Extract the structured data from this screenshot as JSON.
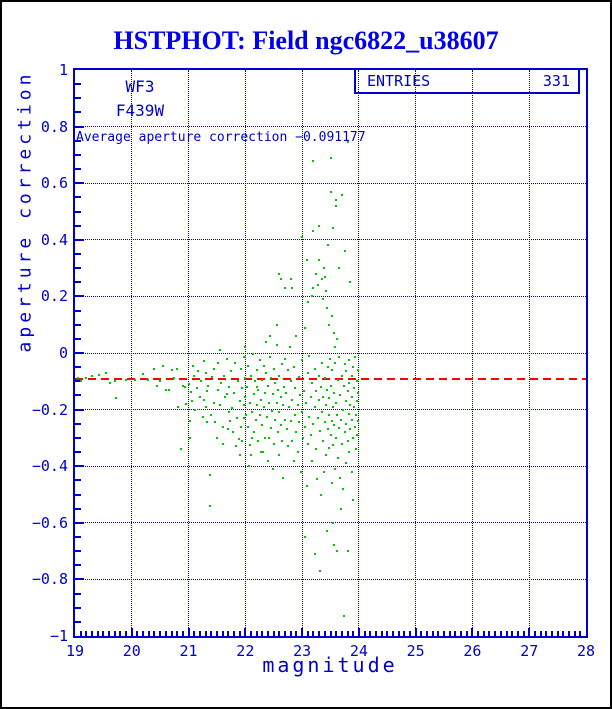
{
  "header": {
    "title": "HSTPHOT: Field ngc6822_u38607"
  },
  "annotations": {
    "detector": "WF3",
    "filter": "F439W",
    "average_line_label": "Average aperture correction −0.091177",
    "entries_label": "ENTRIES",
    "entries_value": "331"
  },
  "colors": {
    "plot_blue": "#0000cd",
    "title_blue": "#0000ee",
    "point_green": "#00c800",
    "mean_line_red": "#ff0000"
  },
  "chart_data": {
    "type": "scatter",
    "title": "HSTPHOT: Field ngc6822_u38607",
    "xlabel": "magnitude",
    "ylabel": "aperture correction",
    "xlim": [
      19,
      28
    ],
    "ylim": [
      -1,
      1
    ],
    "x_minor_step": 0.1,
    "y_minor_step": 0.05,
    "grid": "dotted at major ticks",
    "entries": 331,
    "mean_line": {
      "value": -0.091177,
      "style": "dashed",
      "color": "#ff0000"
    },
    "x_ticks": [
      [
        19,
        "19"
      ],
      [
        20,
        "20"
      ],
      [
        21,
        "21"
      ],
      [
        22,
        "22"
      ],
      [
        23,
        "23"
      ],
      [
        24,
        "24"
      ],
      [
        25,
        "25"
      ],
      [
        26,
        "26"
      ],
      [
        27,
        "27"
      ],
      [
        28,
        "28"
      ]
    ],
    "y_ticks": [
      [
        1,
        "1"
      ],
      [
        0.8,
        "0.8"
      ],
      [
        0.6,
        "0.6"
      ],
      [
        0.4,
        "0.4"
      ],
      [
        0.2,
        "0.2"
      ],
      [
        0,
        "0"
      ],
      [
        -0.2,
        "−0.2"
      ],
      [
        -0.4,
        "−0.4"
      ],
      [
        -0.6,
        "−0.6"
      ],
      [
        -0.8,
        "−0.8"
      ],
      [
        -1,
        "−1"
      ]
    ],
    "points": [
      [
        19.05,
        -0.09
      ],
      [
        19.1,
        -0.1
      ],
      [
        19.2,
        -0.088
      ],
      [
        19.3,
        -0.082
      ],
      [
        19.42,
        -0.078
      ],
      [
        19.55,
        -0.07
      ],
      [
        19.62,
        -0.105
      ],
      [
        19.7,
        -0.1
      ],
      [
        19.72,
        -0.16
      ],
      [
        19.9,
        -0.095
      ],
      [
        20.05,
        -0.094
      ],
      [
        20.2,
        -0.074
      ],
      [
        20.28,
        -0.096
      ],
      [
        20.4,
        -0.056
      ],
      [
        20.45,
        -0.118
      ],
      [
        20.5,
        -0.1
      ],
      [
        20.55,
        -0.046
      ],
      [
        20.6,
        -0.13
      ],
      [
        20.66,
        -0.132
      ],
      [
        20.7,
        -0.06
      ],
      [
        20.75,
        -0.09
      ],
      [
        20.8,
        -0.056
      ],
      [
        20.82,
        -0.19
      ],
      [
        20.87,
        -0.34
      ],
      [
        20.9,
        -0.115
      ],
      [
        20.94,
        -0.12
      ],
      [
        20.95,
        -0.18
      ],
      [
        21.0,
        -0.11
      ],
      [
        21.02,
        -0.3
      ],
      [
        21.03,
        -0.24
      ],
      [
        21.05,
        -0.137
      ],
      [
        21.06,
        -0.17
      ],
      [
        21.08,
        -0.046
      ],
      [
        21.1,
        -0.08
      ],
      [
        21.12,
        -0.2
      ],
      [
        21.15,
        -0.125
      ],
      [
        21.17,
        -0.065
      ],
      [
        21.2,
        -0.155
      ],
      [
        21.22,
        -0.1
      ],
      [
        21.25,
        -0.225
      ],
      [
        21.27,
        -0.03
      ],
      [
        21.28,
        -0.165
      ],
      [
        21.3,
        -0.19
      ],
      [
        21.31,
        -0.07
      ],
      [
        21.32,
        -0.135
      ],
      [
        21.33,
        -0.245
      ],
      [
        21.35,
        -0.115
      ],
      [
        21.37,
        -0.43
      ],
      [
        21.38,
        -0.54
      ],
      [
        21.4,
        -0.22
      ],
      [
        21.42,
        -0.085
      ],
      [
        21.44,
        -0.175
      ],
      [
        21.45,
        -0.055
      ],
      [
        21.47,
        -0.245
      ],
      [
        21.5,
        -0.3
      ],
      [
        21.51,
        -0.13
      ],
      [
        21.52,
        -0.035
      ],
      [
        21.55,
        0.01
      ],
      [
        21.55,
        -0.185
      ],
      [
        21.57,
        -0.105
      ],
      [
        21.6,
        -0.26
      ],
      [
        21.6,
        -0.32
      ],
      [
        21.62,
        -0.08
      ],
      [
        21.65,
        -0.155
      ],
      [
        21.67,
        -0.02
      ],
      [
        21.68,
        -0.145
      ],
      [
        21.7,
        -0.27
      ],
      [
        21.71,
        -0.21
      ],
      [
        21.72,
        -0.12
      ],
      [
        21.73,
        -0.24
      ],
      [
        21.75,
        -0.065
      ],
      [
        21.77,
        -0.195
      ],
      [
        21.78,
        -0.28
      ],
      [
        21.8,
        -0.14
      ],
      [
        21.82,
        -0.035
      ],
      [
        21.83,
        -0.33
      ],
      [
        21.85,
        -0.23
      ],
      [
        21.87,
        -0.1
      ],
      [
        21.88,
        -0.305
      ],
      [
        21.9,
        -0.17
      ],
      [
        21.9,
        -0.36
      ],
      [
        21.92,
        -0.055
      ],
      [
        21.93,
        -0.26
      ],
      [
        21.95,
        -0.125
      ],
      [
        21.95,
        -0.31
      ],
      [
        21.97,
        -0.23
      ],
      [
        21.97,
        -0.015
      ],
      [
        21.98,
        -0.185
      ],
      [
        22.0,
        -0.09
      ],
      [
        22.0,
        -0.155
      ],
      [
        22.0,
        0.02
      ],
      [
        22.02,
        -0.22
      ],
      [
        22.03,
        -0.12
      ],
      [
        22.05,
        -0.26
      ],
      [
        22.05,
        -0.045
      ],
      [
        22.07,
        -0.4
      ],
      [
        22.08,
        -0.175
      ],
      [
        22.09,
        -0.325
      ],
      [
        22.1,
        -0.36
      ],
      [
        22.1,
        -0.08
      ],
      [
        22.11,
        -0.3
      ],
      [
        22.12,
        -0.21
      ],
      [
        22.13,
        -0.005
      ],
      [
        22.15,
        -0.145
      ],
      [
        22.15,
        -0.28
      ],
      [
        22.17,
        -0.1
      ],
      [
        22.18,
        -0.235
      ],
      [
        22.2,
        -0.06
      ],
      [
        22.2,
        -0.185
      ],
      [
        22.21,
        -0.12
      ],
      [
        22.22,
        -0.31
      ],
      [
        22.23,
        -0.13
      ],
      [
        22.25,
        -0.025
      ],
      [
        22.25,
        -0.22
      ],
      [
        22.27,
        -0.165
      ],
      [
        22.28,
        -0.35
      ],
      [
        22.3,
        -0.095
      ],
      [
        22.3,
        -0.255
      ],
      [
        22.31,
        -0.35
      ],
      [
        22.32,
        -0.045
      ],
      [
        22.33,
        -0.19
      ],
      [
        22.35,
        -0.14
      ],
      [
        22.35,
        -0.3
      ],
      [
        22.36,
        0.04
      ],
      [
        22.37,
        -0.07
      ],
      [
        22.38,
        -0.225
      ],
      [
        22.4,
        -0.115
      ],
      [
        22.4,
        -0.38
      ],
      [
        22.41,
        -0.3
      ],
      [
        22.42,
        -0.175
      ],
      [
        22.43,
        -0.015
      ],
      [
        22.44,
        0.06
      ],
      [
        22.45,
        -0.265
      ],
      [
        22.45,
        -0.09
      ],
      [
        22.47,
        -0.205
      ],
      [
        22.48,
        -0.145
      ],
      [
        22.48,
        -0.41
      ],
      [
        22.5,
        -0.32
      ],
      [
        22.5,
        -0.055
      ],
      [
        22.52,
        -0.235
      ],
      [
        22.53,
        -0.105
      ],
      [
        22.55,
        -0.175
      ],
      [
        22.55,
        0.03
      ],
      [
        22.56,
        0.1
      ],
      [
        22.57,
        -0.28
      ],
      [
        22.58,
        -0.13
      ],
      [
        22.59,
        -0.36
      ],
      [
        22.6,
        -0.08
      ],
      [
        22.6,
        -0.21
      ],
      [
        22.6,
        0.28
      ],
      [
        22.62,
        -0.155
      ],
      [
        22.63,
        -0.255
      ],
      [
        22.63,
        0.26
      ],
      [
        22.65,
        -0.04
      ],
      [
        22.65,
        -0.31
      ],
      [
        22.66,
        -0.44
      ],
      [
        22.67,
        -0.185
      ],
      [
        22.68,
        -0.12
      ],
      [
        22.7,
        -0.235
      ],
      [
        22.7,
        -0.02
      ],
      [
        22.7,
        0.23
      ],
      [
        22.72,
        -0.14
      ],
      [
        22.73,
        -0.27
      ],
      [
        22.75,
        -0.06
      ],
      [
        22.75,
        -0.33
      ],
      [
        22.77,
        -0.19
      ],
      [
        22.78,
        0.02
      ],
      [
        22.8,
        -0.24
      ],
      [
        22.8,
        -0.1
      ],
      [
        22.8,
        0.26
      ],
      [
        22.82,
        -0.31
      ],
      [
        22.83,
        -0.165
      ],
      [
        22.83,
        0.23
      ],
      [
        22.85,
        -0.05
      ],
      [
        22.85,
        -0.38
      ],
      [
        22.87,
        -0.22
      ],
      [
        22.88,
        -0.125
      ],
      [
        22.9,
        -0.28
      ],
      [
        22.9,
        0.06
      ],
      [
        22.92,
        -0.185
      ],
      [
        22.93,
        -0.35
      ],
      [
        22.95,
        -0.085
      ],
      [
        22.95,
        -0.245
      ],
      [
        22.97,
        -0.15
      ],
      [
        22.98,
        -0.42
      ],
      [
        23.0,
        -0.21
      ],
      [
        23.0,
        -0.025
      ],
      [
        23.0,
        0.41
      ],
      [
        23.02,
        -0.3
      ],
      [
        23.03,
        -0.135
      ],
      [
        23.05,
        -0.26
      ],
      [
        23.05,
        0.09
      ],
      [
        23.05,
        -0.65
      ],
      [
        23.07,
        -0.175
      ],
      [
        23.08,
        -0.47
      ],
      [
        23.08,
        0.33
      ],
      [
        23.1,
        -0.32
      ],
      [
        23.1,
        -0.07
      ],
      [
        23.1,
        0.18
      ],
      [
        23.12,
        -0.225
      ],
      [
        23.13,
        -0.01
      ],
      [
        23.15,
        -0.29
      ],
      [
        23.15,
        -0.155
      ],
      [
        23.17,
        -0.38
      ],
      [
        23.18,
        -0.105
      ],
      [
        23.18,
        0.2
      ],
      [
        23.2,
        -0.25
      ],
      [
        23.2,
        0.43
      ],
      [
        23.2,
        0.68
      ],
      [
        23.2,
        0.23
      ],
      [
        23.22,
        -0.19
      ],
      [
        23.22,
        -0.71
      ],
      [
        23.23,
        -0.055
      ],
      [
        23.25,
        -0.34
      ],
      [
        23.25,
        -0.135
      ],
      [
        23.25,
        0.28
      ],
      [
        23.27,
        -0.445
      ],
      [
        23.28,
        -0.23
      ],
      [
        23.28,
        0.24
      ],
      [
        23.3,
        -0.165
      ],
      [
        23.3,
        -0.08
      ],
      [
        23.3,
        0.45
      ],
      [
        23.3,
        0.33
      ],
      [
        23.32,
        -0.77
      ],
      [
        23.32,
        -0.275
      ],
      [
        23.33,
        -0.12
      ],
      [
        23.33,
        -0.5
      ],
      [
        23.35,
        -0.21
      ],
      [
        23.35,
        -0.035
      ],
      [
        23.37,
        -0.31
      ],
      [
        23.37,
        -0.155
      ],
      [
        23.38,
        -0.42
      ],
      [
        23.4,
        -0.245
      ],
      [
        23.4,
        -0.09
      ],
      [
        23.4,
        0.27
      ],
      [
        23.42,
        -0.185
      ],
      [
        23.42,
        -0.36
      ],
      [
        23.43,
        -0.63
      ],
      [
        23.44,
        -0.13
      ],
      [
        23.45,
        -0.27
      ],
      [
        23.45,
        -0.05
      ],
      [
        23.47,
        -0.22
      ],
      [
        23.47,
        -0.335
      ],
      [
        23.48,
        -0.16
      ],
      [
        23.49,
        -0.02
      ],
      [
        23.5,
        -0.29
      ],
      [
        23.5,
        0.69
      ],
      [
        23.5,
        0.57
      ],
      [
        23.51,
        -0.115
      ],
      [
        23.52,
        -0.24
      ],
      [
        23.52,
        -0.46
      ],
      [
        23.53,
        -0.06
      ],
      [
        23.55,
        -0.19
      ],
      [
        23.55,
        -0.325
      ],
      [
        23.55,
        -0.6
      ],
      [
        23.55,
        0.44
      ],
      [
        23.56,
        -0.14
      ],
      [
        23.57,
        -0.255
      ],
      [
        23.57,
        -0.68
      ],
      [
        23.58,
        -0.035
      ],
      [
        23.58,
        -0.41
      ],
      [
        23.6,
        -0.175
      ],
      [
        23.6,
        -0.3
      ],
      [
        23.6,
        0.54
      ],
      [
        23.6,
        0.52
      ],
      [
        23.62,
        -0.22
      ],
      [
        23.62,
        -0.7
      ],
      [
        23.63,
        -0.095
      ],
      [
        23.63,
        -0.37
      ],
      [
        23.65,
        -0.265
      ],
      [
        23.65,
        -0.015
      ],
      [
        23.65,
        0.3
      ],
      [
        23.67,
        -0.15
      ],
      [
        23.67,
        -0.44
      ],
      [
        23.68,
        -0.235
      ],
      [
        23.68,
        -0.55
      ],
      [
        23.7,
        -0.08
      ],
      [
        23.7,
        -0.32
      ],
      [
        23.7,
        0.56
      ],
      [
        23.72,
        -0.2
      ],
      [
        23.72,
        -0.48
      ],
      [
        23.73,
        -0.93
      ],
      [
        23.73,
        -0.115
      ],
      [
        23.75,
        -0.28
      ],
      [
        23.75,
        -0.04
      ],
      [
        23.75,
        0.36
      ],
      [
        23.77,
        -0.17
      ],
      [
        23.77,
        -0.39
      ],
      [
        23.78,
        -0.25
      ],
      [
        23.78,
        -0.065
      ],
      [
        23.8,
        -0.31
      ],
      [
        23.8,
        -0.135
      ],
      [
        23.8,
        -0.7
      ],
      [
        23.82,
        -0.215
      ],
      [
        23.82,
        -0.025
      ],
      [
        23.83,
        -0.35
      ],
      [
        23.83,
        -0.105
      ],
      [
        23.85,
        -0.185
      ],
      [
        23.85,
        -0.27
      ],
      [
        23.85,
        0.25
      ],
      [
        23.87,
        -0.08
      ],
      [
        23.87,
        -0.42
      ],
      [
        23.88,
        -0.155
      ],
      [
        23.88,
        -0.235
      ],
      [
        23.9,
        -0.3
      ],
      [
        23.9,
        -0.05
      ],
      [
        23.9,
        -0.52
      ],
      [
        23.92,
        -0.19
      ],
      [
        23.92,
        -0.125
      ],
      [
        23.93,
        -0.26
      ],
      [
        23.93,
        -0.015
      ],
      [
        23.95,
        -0.22
      ],
      [
        23.95,
        -0.34
      ],
      [
        23.96,
        -0.1
      ],
      [
        23.97,
        -0.17
      ],
      [
        23.97,
        -0.29
      ],
      [
        23.98,
        -0.06
      ],
      [
        23.98,
        -0.24
      ],
      [
        23.99,
        -0.14
      ],
      [
        23.45,
        0.38
      ],
      [
        23.38,
        0.3
      ],
      [
        23.42,
        0.22
      ],
      [
        23.35,
        0.26
      ],
      [
        23.36,
        0.19
      ],
      [
        23.44,
        0.16
      ],
      [
        23.52,
        0.13
      ],
      [
        23.48,
        0.1
      ],
      [
        23.56,
        0.07
      ],
      [
        23.62,
        0.05
      ],
      [
        23.58,
        0.02
      ],
      [
        23.8,
        0.745
      ]
    ]
  }
}
